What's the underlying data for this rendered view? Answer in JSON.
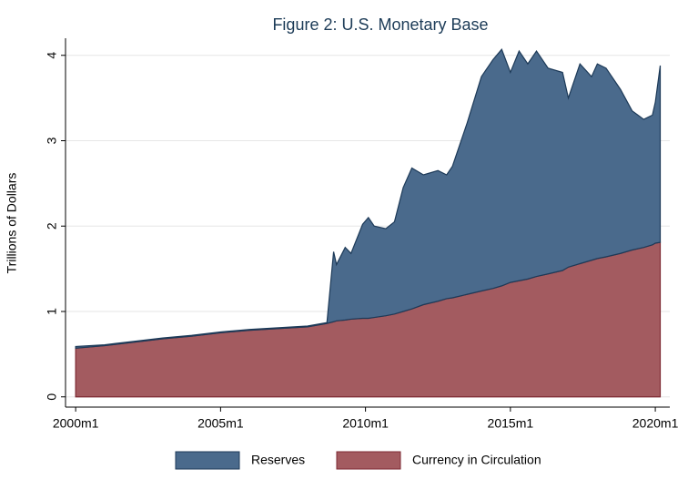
{
  "chart_data": {
    "type": "stacked-area",
    "title": "Figure 2: U.S. Monetary Base",
    "y_label": "Trillions of Dollars",
    "x": [
      2000,
      2001,
      2002,
      2003,
      2004,
      2005,
      2006,
      2007,
      2008,
      2008.67,
      2008.9,
      2009.0,
      2009.3,
      2009.5,
      2009.9,
      2010.1,
      2010.3,
      2010.7,
      2011.0,
      2011.3,
      2011.6,
      2012.0,
      2012.5,
      2012.8,
      2013.0,
      2013.5,
      2014.0,
      2014.4,
      2014.7,
      2015.0,
      2015.3,
      2015.6,
      2015.9,
      2016.3,
      2016.8,
      2017.0,
      2017.4,
      2017.8,
      2018.0,
      2018.3,
      2018.8,
      2019.2,
      2019.6,
      2019.9,
      2020.0,
      2020.17
    ],
    "series": [
      {
        "name": "Currency in Circulation",
        "color": "#a35b60",
        "edge": "#7e2a33",
        "values": [
          0.57,
          0.6,
          0.64,
          0.68,
          0.71,
          0.75,
          0.78,
          0.8,
          0.82,
          0.86,
          0.88,
          0.89,
          0.9,
          0.91,
          0.92,
          0.92,
          0.93,
          0.95,
          0.97,
          1.0,
          1.03,
          1.08,
          1.12,
          1.15,
          1.16,
          1.2,
          1.24,
          1.27,
          1.3,
          1.34,
          1.36,
          1.38,
          1.41,
          1.44,
          1.48,
          1.52,
          1.56,
          1.6,
          1.62,
          1.64,
          1.68,
          1.72,
          1.75,
          1.78,
          1.8,
          1.81
        ]
      },
      {
        "name": "Reserves",
        "color": "#4a6a8c",
        "edge": "#1d3a58",
        "values": [
          0.02,
          0.01,
          0.01,
          0.01,
          0.01,
          0.01,
          0.01,
          0.01,
          0.01,
          0.01,
          0.82,
          0.66,
          0.85,
          0.77,
          1.1,
          1.18,
          1.07,
          1.02,
          1.08,
          1.45,
          1.65,
          1.52,
          1.53,
          1.45,
          1.54,
          2.0,
          2.51,
          2.68,
          2.77,
          2.46,
          2.69,
          2.52,
          2.64,
          2.41,
          2.32,
          1.98,
          2.34,
          2.15,
          2.28,
          2.21,
          1.92,
          1.63,
          1.5,
          1.52,
          1.65,
          2.07
        ]
      }
    ],
    "xlim": [
      1999.65,
      2020.5
    ],
    "xticks": [
      {
        "value": 2000,
        "label": "2000m1"
      },
      {
        "value": 2005,
        "label": "2005m1"
      },
      {
        "value": 2010,
        "label": "2010m1"
      },
      {
        "value": 2015,
        "label": "2015m1"
      },
      {
        "value": 2020,
        "label": "2020m1"
      }
    ],
    "ylim": [
      -0.12,
      4.2
    ],
    "yticks": [
      0,
      1,
      2,
      3,
      4
    ],
    "grid": true,
    "legend_order": [
      1,
      0
    ]
  }
}
